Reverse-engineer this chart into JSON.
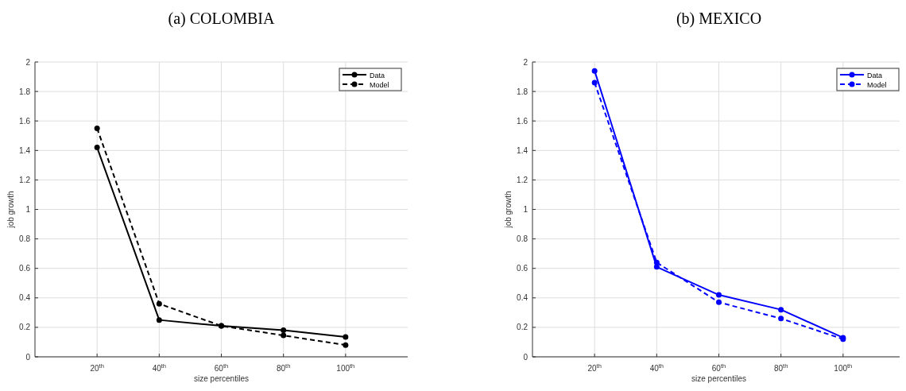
{
  "chart_data": [
    {
      "type": "line",
      "title": "(a) COLOMBIA",
      "xlabel": "size percentiles",
      "ylabel": "job growth",
      "x": [
        20,
        40,
        60,
        80,
        100
      ],
      "xlim": [
        0,
        120
      ],
      "xticks": [
        {
          "value": 20,
          "label": "20$^{th}$"
        },
        {
          "value": 40,
          "label": "40$^{th}$"
        },
        {
          "value": 60,
          "label": "60$^{th}$"
        },
        {
          "value": 80,
          "label": "80$^{th}$"
        },
        {
          "value": 100,
          "label": "100$^{th}$"
        }
      ],
      "ylim": [
        0,
        2
      ],
      "yticks": [
        0,
        0.2,
        0.4,
        0.6,
        0.8,
        1,
        1.2,
        1.4,
        1.6,
        1.8,
        2
      ],
      "grid": true,
      "legend": "top right",
      "marker": "circle",
      "series": [
        {
          "name": "Data",
          "color": "#000000",
          "line_style": "solid",
          "values": [
            1.42,
            0.25,
            0.21,
            0.18,
            0.135
          ]
        },
        {
          "name": "Model",
          "color": "#000000",
          "line_style": "dashed",
          "values": [
            1.55,
            0.36,
            0.21,
            0.145,
            0.08
          ]
        }
      ]
    },
    {
      "type": "line",
      "title": "(b) MEXICO",
      "xlabel": "size percentiles",
      "ylabel": "job growth",
      "x": [
        20,
        40,
        60,
        80,
        100
      ],
      "xlim": [
        0,
        120
      ],
      "xticks": [
        {
          "value": 20,
          "label": "20$^{th}$"
        },
        {
          "value": 40,
          "label": "40$^{th}$"
        },
        {
          "value": 60,
          "label": "60$^{th}$"
        },
        {
          "value": 80,
          "label": "80$^{th}$"
        },
        {
          "value": 100,
          "label": "100$^{th}$"
        }
      ],
      "ylim": [
        0,
        2
      ],
      "yticks": [
        0,
        0.2,
        0.4,
        0.6,
        0.8,
        1,
        1.2,
        1.4,
        1.6,
        1.8,
        2
      ],
      "grid": true,
      "legend": "top right",
      "marker": "circle",
      "series": [
        {
          "name": "Data",
          "color": "#0000ff",
          "line_style": "solid",
          "values": [
            1.94,
            0.61,
            0.42,
            0.32,
            0.13
          ]
        },
        {
          "name": "Model",
          "color": "#0000ff",
          "line_style": "dashed",
          "values": [
            1.86,
            0.64,
            0.37,
            0.26,
            0.12
          ]
        }
      ]
    }
  ]
}
